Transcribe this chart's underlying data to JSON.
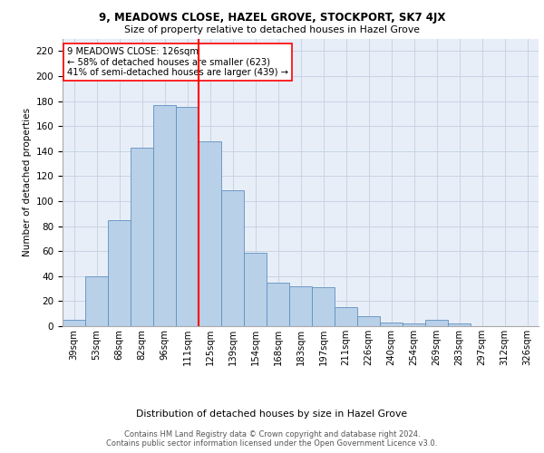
{
  "title1": "9, MEADOWS CLOSE, HAZEL GROVE, STOCKPORT, SK7 4JX",
  "title2": "Size of property relative to detached houses in Hazel Grove",
  "xlabel": "Distribution of detached houses by size in Hazel Grove",
  "ylabel": "Number of detached properties",
  "bin_labels": [
    "39sqm",
    "53sqm",
    "68sqm",
    "82sqm",
    "96sqm",
    "111sqm",
    "125sqm",
    "139sqm",
    "154sqm",
    "168sqm",
    "183sqm",
    "197sqm",
    "211sqm",
    "226sqm",
    "240sqm",
    "254sqm",
    "269sqm",
    "283sqm",
    "297sqm",
    "312sqm",
    "326sqm"
  ],
  "bar_heights": [
    5,
    40,
    85,
    143,
    177,
    175,
    148,
    109,
    59,
    35,
    32,
    31,
    15,
    8,
    3,
    2,
    5,
    2,
    0,
    0,
    0
  ],
  "bar_color": "#b8d0e8",
  "bar_edge_color": "#6090c0",
  "grid_color": "#c8d4e4",
  "background_color": "#e8eef8",
  "vline_color": "red",
  "annotation_text": "9 MEADOWS CLOSE: 126sqm\n← 58% of detached houses are smaller (623)\n41% of semi-detached houses are larger (439) →",
  "annotation_box_color": "white",
  "annotation_box_edge": "red",
  "footnote1": "Contains HM Land Registry data © Crown copyright and database right 2024.",
  "footnote2": "Contains public sector information licensed under the Open Government Licence v3.0.",
  "ylim": [
    0,
    230
  ],
  "yticks": [
    0,
    20,
    40,
    60,
    80,
    100,
    120,
    140,
    160,
    180,
    200,
    220
  ],
  "vline_bin_index": 6
}
